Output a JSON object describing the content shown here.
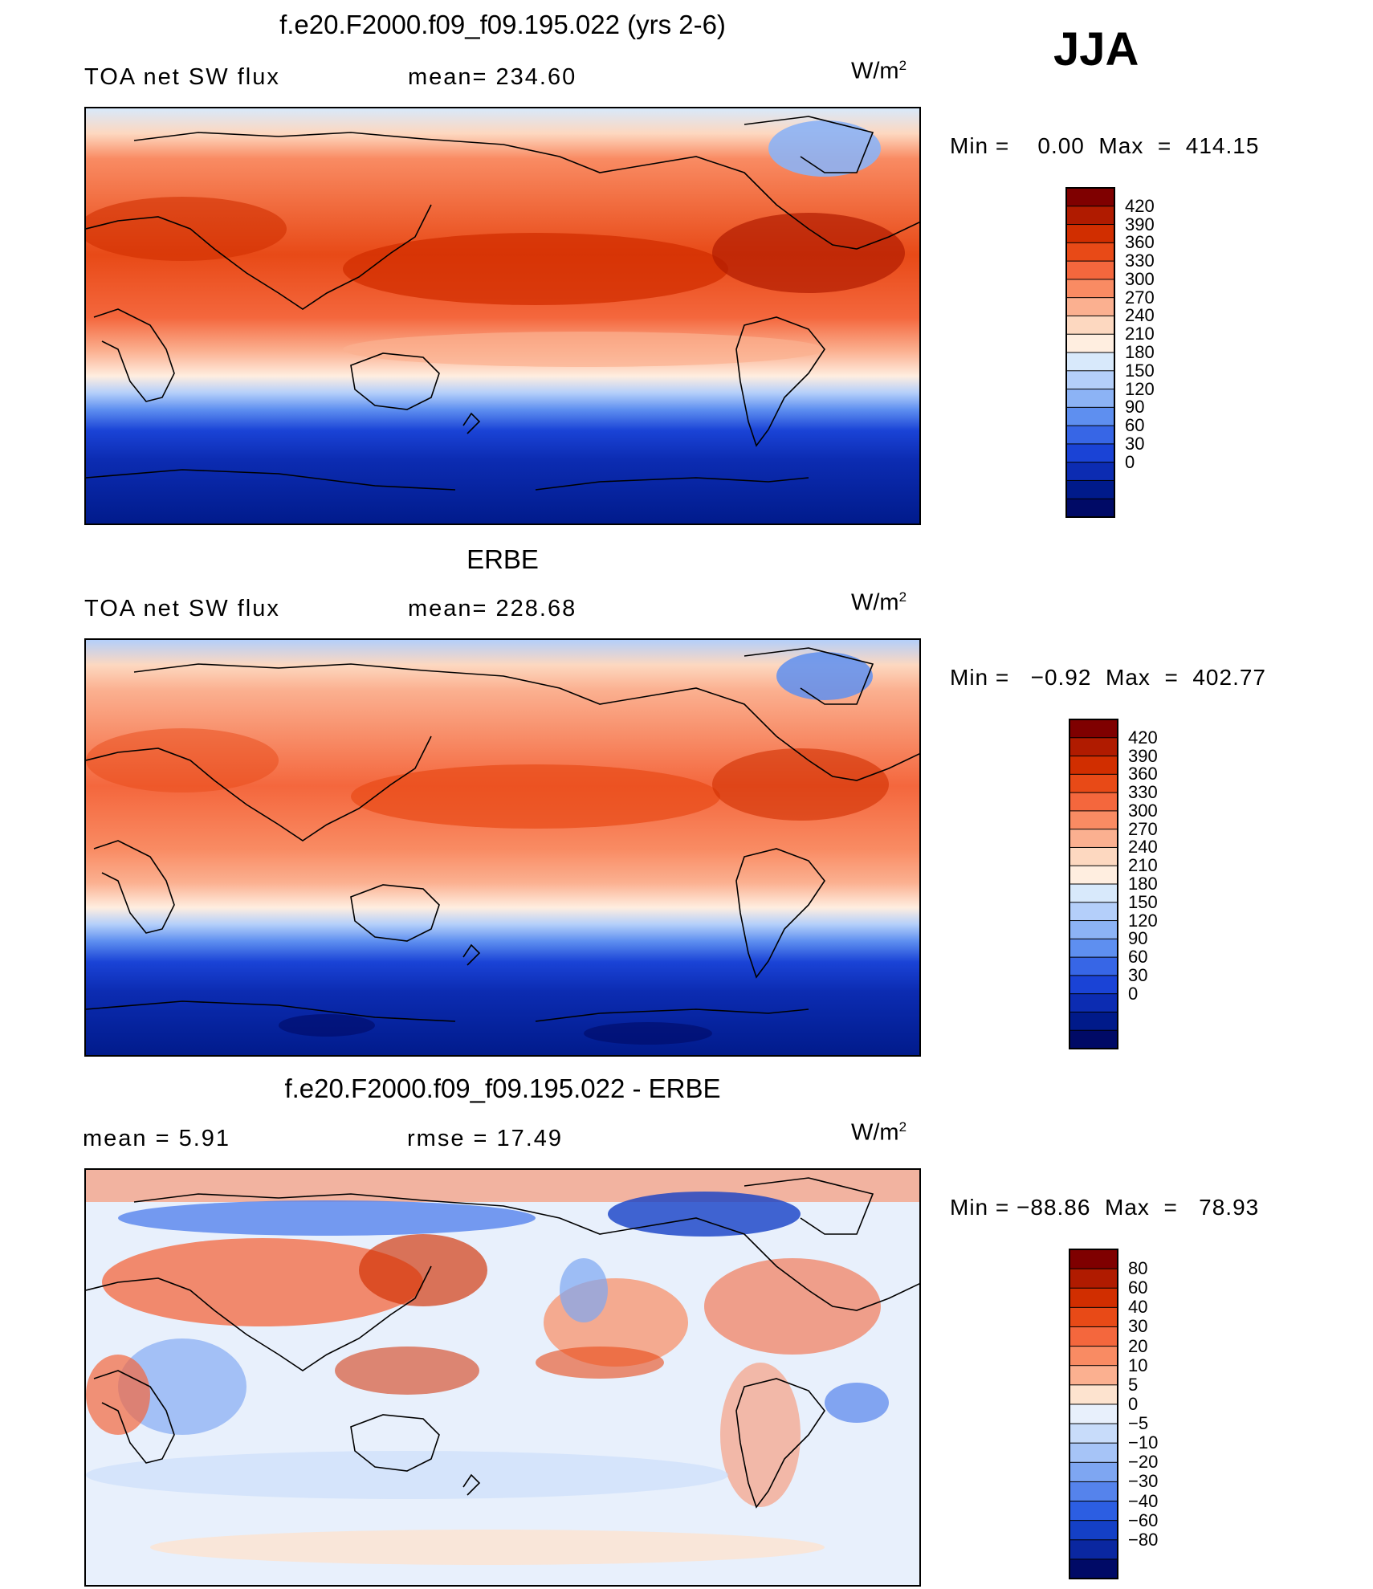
{
  "season": "JJA",
  "units_base": "W/m",
  "units_exp": "2",
  "panels": [
    {
      "title": "f.e20.F2000.f09_f09.195.022 (yrs 2-6)",
      "left_label": "TOA net SW flux",
      "stat": "mean= 234.60",
      "minmax": "Min =    0.00  Max  =  414.15"
    },
    {
      "title": "ERBE",
      "left_label": "TOA net SW flux",
      "stat": "mean= 228.68",
      "minmax": "Min =   −0.92  Max  =  402.77"
    },
    {
      "title": "f.e20.F2000.f09_f09.195.022 - ERBE",
      "left_label": "mean =     5.91",
      "stat": "rmse =    17.49",
      "minmax": "Min = −88.86  Max  =   78.93"
    }
  ],
  "colorbars": {
    "abs": {
      "labels": [
        "420",
        "390",
        "360",
        "330",
        "300",
        "270",
        "240",
        "210",
        "180",
        "150",
        "120",
        "90",
        "60",
        "30",
        "0"
      ],
      "colors": [
        "#7f0000",
        "#b01b00",
        "#d12e00",
        "#e84a17",
        "#f4673d",
        "#f98b63",
        "#fbb090",
        "#fdd8c0",
        "#ffeee0",
        "#d8e9fb",
        "#b4cffa",
        "#8cb3f5",
        "#5e8ff0",
        "#3766e6",
        "#1a43d6",
        "#0c2cb2",
        "#001a8a",
        "#000a66"
      ]
    },
    "diff": {
      "labels": [
        "80",
        "60",
        "40",
        "30",
        "20",
        "10",
        "5",
        "0",
        "−5",
        "−10",
        "−20",
        "−30",
        "−40",
        "−60",
        "−80"
      ],
      "colors": [
        "#7f0000",
        "#b01b00",
        "#d12e00",
        "#e84a17",
        "#f4673d",
        "#f98b63",
        "#fbb090",
        "#fde3cf",
        "#e8f0fc",
        "#c8dcfa",
        "#a6c4f7",
        "#7ea6f2",
        "#5583ec",
        "#2c5ee2",
        "#1440c6",
        "#0a27a0",
        "#000a66"
      ]
    }
  }
}
